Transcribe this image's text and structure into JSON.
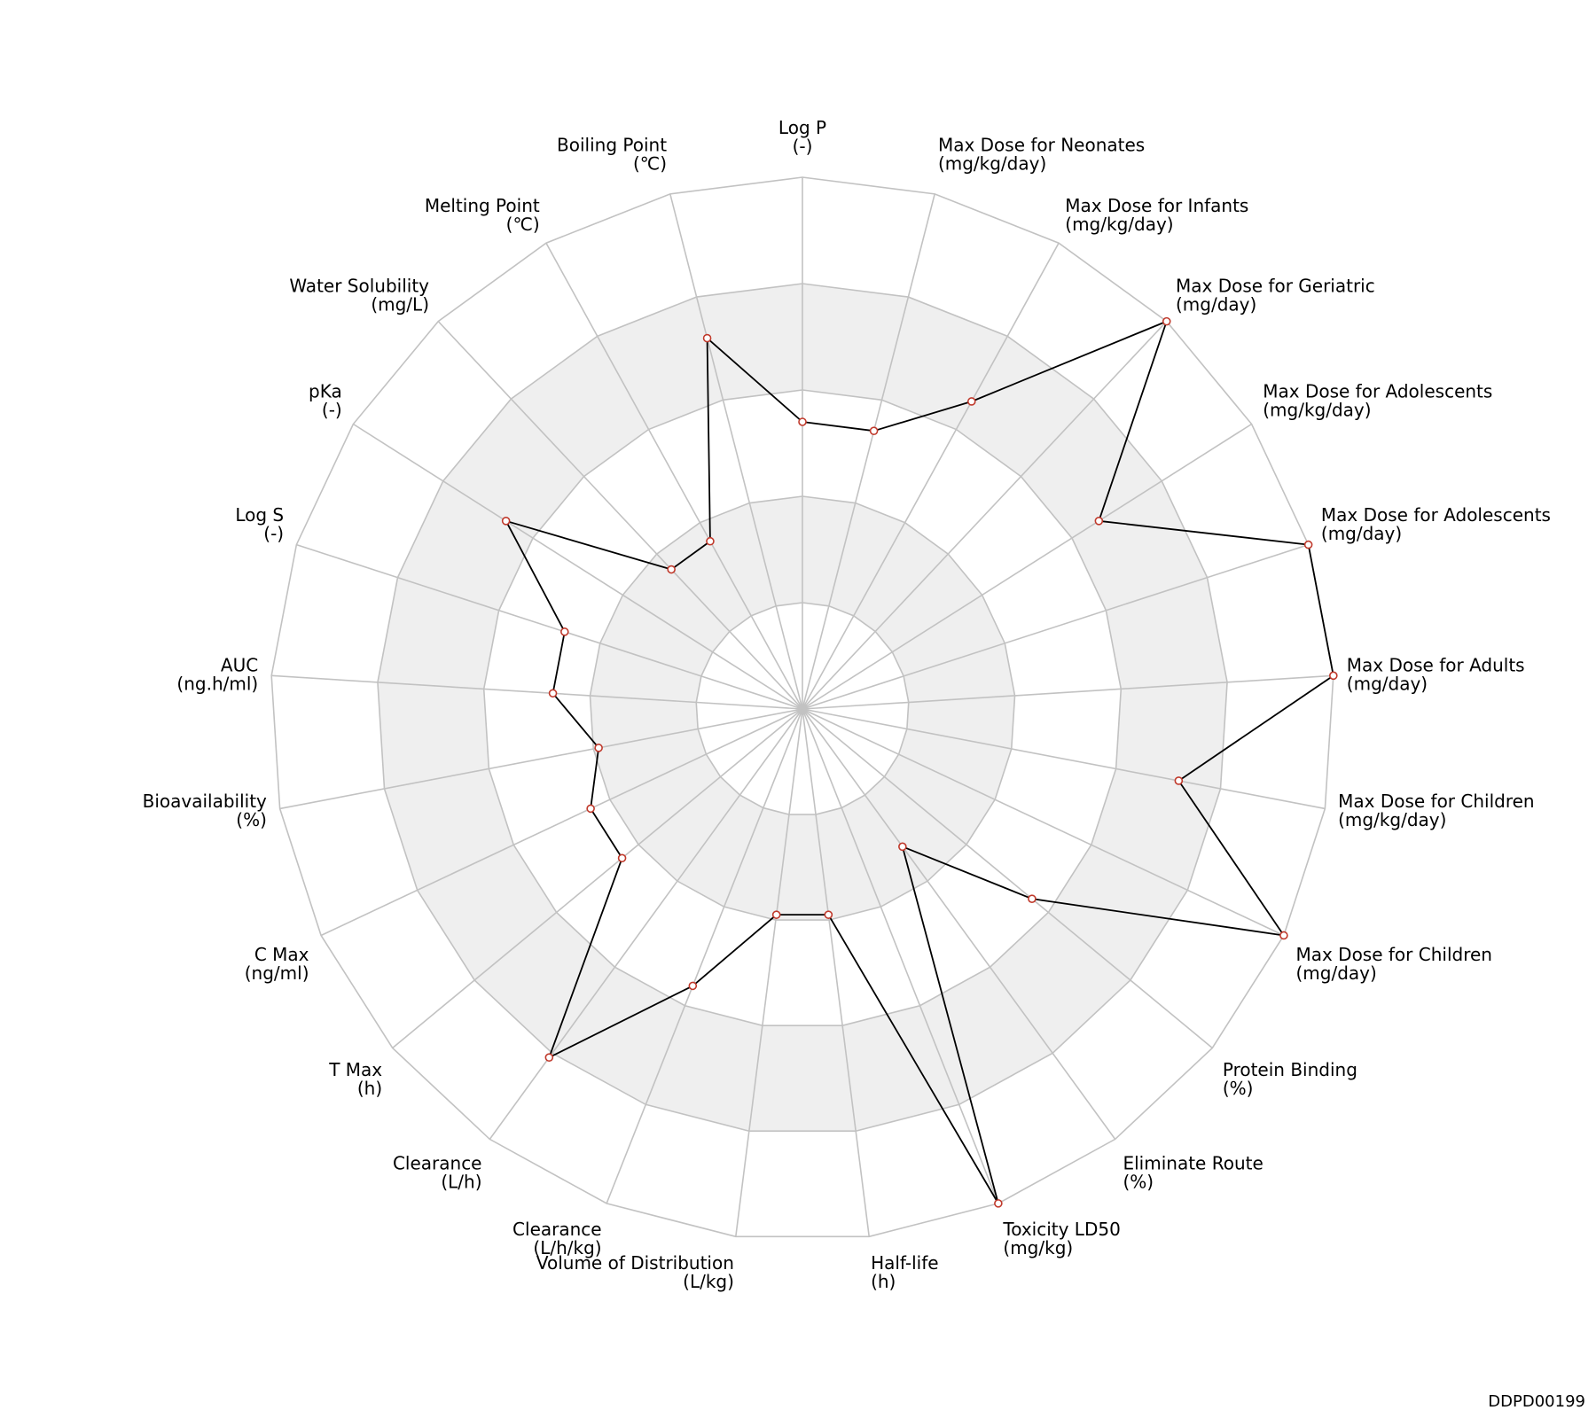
{
  "chart_data": {
    "type": "radar",
    "axes": [
      {
        "name": "Log P",
        "unit": "(-)"
      },
      {
        "name": "Max Dose for Neonates",
        "unit": "(mg/kg/day)"
      },
      {
        "name": "Max Dose for Infants",
        "unit": "(mg/kg/day)"
      },
      {
        "name": "Max Dose for Geriatric",
        "unit": "(mg/day)"
      },
      {
        "name": "Max Dose for Adolescents",
        "unit": "(mg/kg/day)"
      },
      {
        "name": "Max Dose for Adolescents",
        "unit": "(mg/day)"
      },
      {
        "name": "Max Dose for Adults",
        "unit": "(mg/day)"
      },
      {
        "name": "Max Dose for Children",
        "unit": "(mg/kg/day)"
      },
      {
        "name": "Max Dose for Children",
        "unit": "(mg/day)"
      },
      {
        "name": "Protein Binding",
        "unit": "(%)"
      },
      {
        "name": "Eliminate Route",
        "unit": "(%)"
      },
      {
        "name": "Toxicity LD50",
        "unit": "(mg/kg)"
      },
      {
        "name": "Half-life",
        "unit": "(h)"
      },
      {
        "name": "Volume of Distribution",
        "unit": "(L/kg)"
      },
      {
        "name": "Clearance",
        "unit": "(L/h/kg)"
      },
      {
        "name": "Clearance",
        "unit": "(L/h)"
      },
      {
        "name": "T Max",
        "unit": "(h)"
      },
      {
        "name": "C Max",
        "unit": "(ng/ml)"
      },
      {
        "name": "Bioavailability",
        "unit": "(%)"
      },
      {
        "name": "AUC",
        "unit": "(ng.h/ml)"
      },
      {
        "name": "Log S",
        "unit": "(-)"
      },
      {
        "name": "pKa",
        "unit": "(-)"
      },
      {
        "name": "Water Solubility",
        "unit": "(mg/L)"
      },
      {
        "name": "Melting Point",
        "unit": "(℃)"
      },
      {
        "name": "Boiling Point",
        "unit": "(℃)"
      }
    ],
    "levels": 5,
    "range": [
      0,
      1
    ],
    "values": [
      0.54,
      0.54,
      0.66,
      1.0,
      0.66,
      1.0,
      1.0,
      0.72,
      1.0,
      0.56,
      0.32,
      1.0,
      0.39,
      0.39,
      0.56,
      0.81,
      0.44,
      0.44,
      0.39,
      0.47,
      0.47,
      0.66,
      0.36,
      0.36,
      0.72
    ],
    "grid": true,
    "colors": {
      "line": "#000000",
      "marker_edge": "#c0392b",
      "marker_fill": "#ffffff",
      "band_fill": "#efefef",
      "grid": "#c2c2c2"
    }
  },
  "footer": {
    "id": "DDPD00199"
  }
}
